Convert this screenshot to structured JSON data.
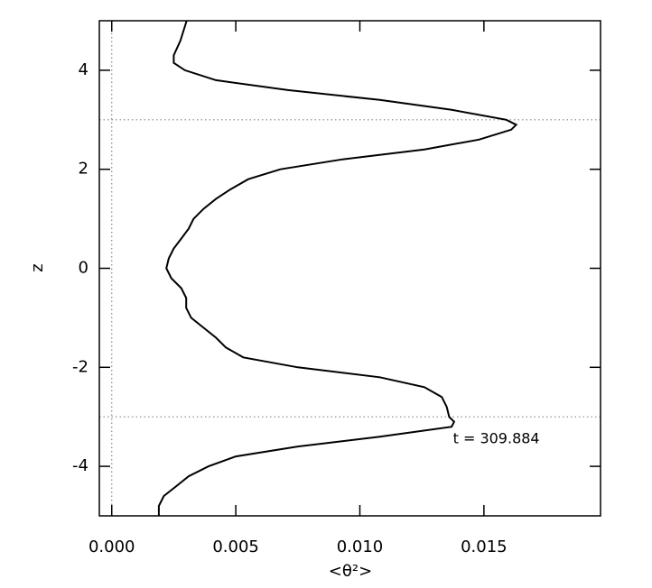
{
  "chart_data": {
    "type": "line",
    "xlabel": "<θ²>",
    "ylabel": "z",
    "annotation": "t = 309.884",
    "annotation_pos": [
      0.0155,
      -3.45
    ],
    "color": "#000000",
    "x": [
      0.00302,
      0.00277,
      0.0025,
      0.0025,
      0.00295,
      0.0042,
      0.0071,
      0.0108,
      0.0137,
      0.0159,
      0.0163,
      0.0161,
      0.0148,
      0.0126,
      0.0093,
      0.0068,
      0.0055,
      0.0048,
      0.0042,
      0.0037,
      0.0033,
      0.0031,
      0.0028,
      0.0025,
      0.0023,
      0.0022,
      0.0024,
      0.0028,
      0.003,
      0.003,
      0.0032,
      0.0037,
      0.0042,
      0.0046,
      0.0053,
      0.0075,
      0.0108,
      0.0126,
      0.0133,
      0.0135,
      0.0136,
      0.0138,
      0.0137,
      0.0108,
      0.0075,
      0.005,
      0.0039,
      0.0031,
      0.0026,
      0.0021,
      0.0019,
      0.0019
    ],
    "y": [
      5,
      4.6,
      4.3,
      4.15,
      4.0,
      3.8,
      3.6,
      3.4,
      3.2,
      3.0,
      2.9,
      2.8,
      2.6,
      2.4,
      2.2,
      2.0,
      1.8,
      1.6,
      1.4,
      1.2,
      1.0,
      0.8,
      0.6,
      0.4,
      0.2,
      0.0,
      -0.2,
      -0.4,
      -0.6,
      -0.8,
      -1.0,
      -1.2,
      -1.4,
      -1.6,
      -1.8,
      -2.0,
      -2.2,
      -2.4,
      -2.6,
      -2.8,
      -3.0,
      -3.1,
      -3.2,
      -3.4,
      -3.6,
      -3.8,
      -4.0,
      -4.2,
      -4.4,
      -4.6,
      -4.8,
      -5.0
    ],
    "xlim": [
      -0.0005,
      0.0197
    ],
    "ylim": [
      -5,
      5
    ],
    "xticks": [
      {
        "value": 0,
        "label": "0.000"
      },
      0.005,
      {
        "value": 0.01,
        "label": "0.010"
      },
      0.015
    ],
    "yticks": [
      -4,
      -2,
      0,
      2,
      4
    ],
    "hlines": [
      3,
      -3
    ],
    "vlines": [
      0
    ]
  }
}
